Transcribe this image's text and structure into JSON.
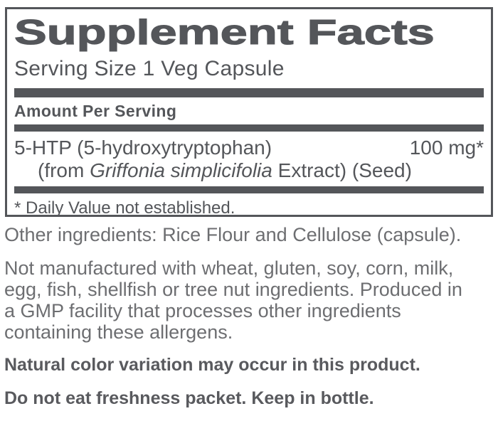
{
  "label": {
    "panel": {
      "title": "Supplement Facts",
      "serving_size": "Serving Size 1 Veg Capsule",
      "amount_per_serving": "Amount Per Serving",
      "rows": [
        {
          "name": "5-HTP (5-hydroxytryptophan)",
          "amount": "100 mg*",
          "detail_prefix": "(from ",
          "detail_italic": "Griffonia simplicifolia",
          "detail_suffix": " Extract) (Seed)"
        }
      ],
      "footnote": "* Daily Value not established."
    },
    "other_ingredients": "Other ingredients: Rice Flour and Cellulose (capsule).",
    "allergen_lines": [
      "Not manufactured with wheat, gluten, soy, corn, milk,",
      "egg, fish, shellfish or tree nut ingredients. Produced in",
      "a GMP facility that processes other ingredients",
      "containing these allergens."
    ],
    "color_variation_note": "Natural color variation may occur in this product.",
    "freshness_note": "Do not eat freshness packet. Keep in bottle."
  },
  "colors": {
    "panel_text": "#54565a",
    "body_text": "#6d6e71",
    "emphasis_text": "#595a5e",
    "background": "#ffffff"
  }
}
